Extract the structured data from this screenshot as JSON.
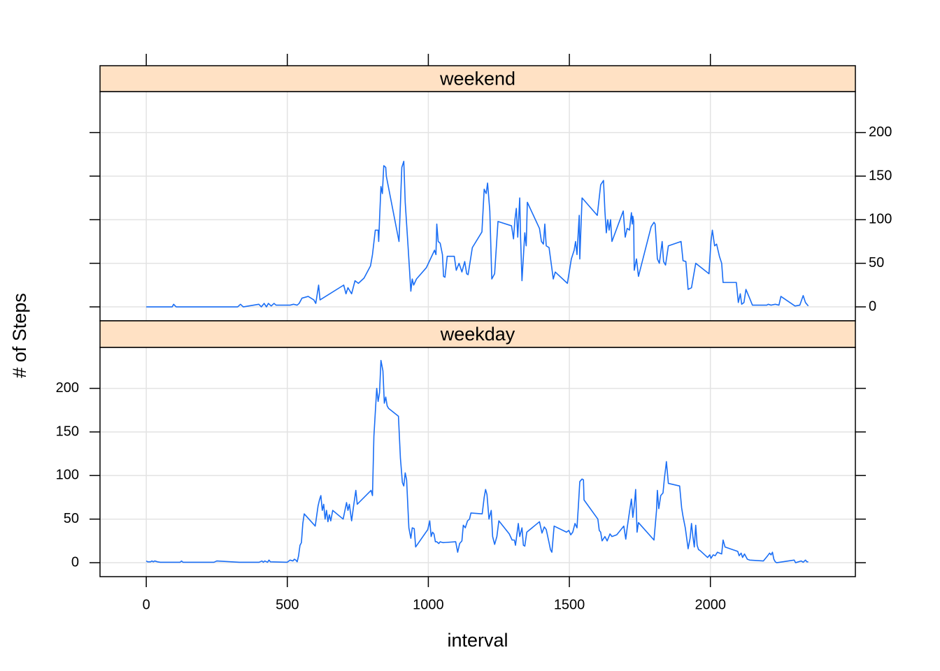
{
  "chart_data": [
    {
      "type": "line",
      "title": "weekend",
      "color": "#1a6ef5",
      "grid": true,
      "xlim": [
        -164,
        2514
      ],
      "ylim": [
        -16,
        247
      ],
      "xticks": [
        0,
        500,
        1000,
        1500,
        2000
      ],
      "yticks": [
        0,
        50,
        100,
        150,
        200
      ],
      "x": [
        0,
        92,
        97,
        106,
        324,
        334,
        344,
        399,
        408,
        418,
        426,
        433,
        443,
        453,
        460,
        510,
        522,
        535,
        542,
        552,
        574,
        594,
        601,
        611,
        616,
        700,
        708,
        715,
        728,
        740,
        752,
        772,
        795,
        802,
        812,
        822,
        824,
        827,
        832,
        837,
        842,
        849,
        851,
        896,
        906,
        913,
        918,
        928,
        938,
        943,
        948,
        958,
        993,
        1022,
        1027,
        1030,
        1035,
        1042,
        1050,
        1054,
        1059,
        1067,
        1092,
        1099,
        1109,
        1119,
        1129,
        1136,
        1141,
        1156,
        1190,
        1198,
        1205,
        1210,
        1218,
        1225,
        1235,
        1247,
        1295,
        1302,
        1307,
        1312,
        1317,
        1324,
        1327,
        1332,
        1342,
        1347,
        1351,
        1394,
        1401,
        1408,
        1413,
        1418,
        1428,
        1443,
        1450,
        1493,
        1507,
        1517,
        1522,
        1527,
        1535,
        1537,
        1545,
        1599,
        1611,
        1621,
        1626,
        1631,
        1636,
        1641,
        1646,
        1651,
        1691,
        1698,
        1705,
        1713,
        1720,
        1723,
        1725,
        1728,
        1730,
        1738,
        1745,
        1790,
        1800,
        1804,
        1812,
        1819,
        1829,
        1834,
        1841,
        1851,
        1896,
        1903,
        1913,
        1921,
        1933,
        1948,
        1995,
        2002,
        2007,
        2015,
        2022,
        2032,
        2040,
        2045,
        2092,
        2099,
        2106,
        2111,
        2119,
        2126,
        2139,
        2149,
        2200,
        2205,
        2215,
        2230,
        2243,
        2250,
        2300,
        2317,
        2329,
        2337,
        2347
      ],
      "values": [
        0,
        0,
        3,
        0,
        0,
        3,
        0,
        3,
        0,
        4,
        0,
        4,
        1,
        4,
        2,
        2,
        3,
        2,
        4,
        10,
        12,
        8,
        4,
        25,
        8,
        25,
        15,
        22,
        15,
        30,
        27,
        33,
        47,
        60,
        88,
        88,
        75,
        100,
        138,
        130,
        162,
        160,
        150,
        75,
        160,
        167,
        120,
        70,
        18,
        32,
        25,
        32,
        45,
        65,
        60,
        95,
        75,
        73,
        60,
        35,
        34,
        58,
        58,
        42,
        50,
        40,
        52,
        38,
        37,
        68,
        86,
        135,
        130,
        142,
        110,
        32,
        38,
        98,
        93,
        78,
        100,
        113,
        80,
        125,
        80,
        30,
        85,
        70,
        120,
        90,
        75,
        72,
        95,
        70,
        68,
        32,
        40,
        27,
        55,
        65,
        75,
        60,
        105,
        55,
        125,
        105,
        140,
        145,
        110,
        85,
        100,
        88,
        100,
        75,
        110,
        80,
        90,
        88,
        108,
        95,
        104,
        98,
        42,
        55,
        35,
        92,
        97,
        95,
        55,
        50,
        75,
        52,
        48,
        70,
        75,
        53,
        52,
        20,
        22,
        50,
        38,
        75,
        88,
        70,
        72,
        58,
        50,
        28,
        28,
        5,
        15,
        3,
        5,
        20,
        10,
        2,
        2,
        3,
        2,
        3,
        2,
        12,
        1,
        2,
        13,
        5,
        1
      ]
    },
    {
      "type": "line",
      "title": "weekday",
      "x_label": "interval",
      "y_label": "# of Steps",
      "color": "#1a6ef5",
      "grid": true,
      "xlim": [
        -164,
        2514
      ],
      "ylim": [
        -16,
        247
      ],
      "xticks": [
        0,
        500,
        1000,
        1500,
        2000
      ],
      "yticks": [
        0,
        50,
        100,
        150,
        200
      ],
      "x": [
        0,
        5,
        15,
        20,
        25,
        30,
        40,
        50,
        120,
        125,
        130,
        240,
        250,
        330,
        400,
        410,
        415,
        420,
        430,
        435,
        440,
        500,
        510,
        520,
        525,
        530,
        535,
        540,
        545,
        550,
        555,
        560,
        599,
        609,
        614,
        619,
        624,
        629,
        634,
        639,
        644,
        649,
        654,
        661,
        698,
        710,
        715,
        720,
        728,
        735,
        743,
        748,
        757,
        797,
        802,
        807,
        817,
        822,
        827,
        832,
        839,
        844,
        849,
        854,
        859,
        894,
        901,
        908,
        913,
        918,
        923,
        931,
        938,
        943,
        950,
        955,
        998,
        1005,
        1010,
        1015,
        1020,
        1025,
        1030,
        1037,
        1042,
        1052,
        1097,
        1104,
        1111,
        1119,
        1124,
        1131,
        1139,
        1146,
        1151,
        1191,
        1198,
        1203,
        1208,
        1215,
        1223,
        1228,
        1235,
        1243,
        1250,
        1287,
        1297,
        1305,
        1309,
        1319,
        1324,
        1332,
        1337,
        1342,
        1349,
        1394,
        1403,
        1411,
        1418,
        1428,
        1433,
        1438,
        1446,
        1490,
        1498,
        1505,
        1512,
        1520,
        1527,
        1532,
        1537,
        1545,
        1550,
        1552,
        1601,
        1606,
        1611,
        1616,
        1626,
        1634,
        1644,
        1651,
        1668,
        1693,
        1700,
        1705,
        1713,
        1720,
        1725,
        1730,
        1735,
        1740,
        1745,
        1800,
        1809,
        1812,
        1817,
        1824,
        1832,
        1837,
        1842,
        1844,
        1851,
        1891,
        1898,
        1903,
        1911,
        1921,
        1928,
        1933,
        1938,
        1943,
        1948,
        1953,
        1958,
        1963,
        1990,
        1998,
        2002,
        2010,
        2017,
        2025,
        2040,
        2045,
        2052,
        2097,
        2102,
        2109,
        2114,
        2121,
        2131,
        2139,
        2188,
        2203,
        2210,
        2215,
        2220,
        2225,
        2230,
        2235,
        2297,
        2302,
        2312,
        2322,
        2329,
        2337,
        2342,
        2347
      ],
      "values": [
        2,
        1,
        1,
        2,
        1,
        2,
        1,
        0.5,
        0.5,
        2,
        0.5,
        0.5,
        2,
        0.5,
        0.5,
        2,
        0.5,
        2,
        0.5,
        3,
        1,
        0.5,
        3,
        2,
        4,
        3,
        1,
        8,
        20,
        23,
        45,
        56,
        42,
        65,
        72,
        77,
        60,
        67,
        50,
        60,
        47,
        55,
        48,
        60,
        50,
        69,
        60,
        67,
        48,
        65,
        83,
        67,
        70,
        83,
        77,
        145,
        200,
        185,
        195,
        232,
        220,
        183,
        190,
        180,
        177,
        168,
        120,
        92,
        88,
        103,
        95,
        40,
        28,
        40,
        39,
        18,
        38,
        48,
        30,
        35,
        33,
        24,
        24,
        22,
        24,
        23,
        24,
        12,
        22,
        25,
        43,
        40,
        48,
        50,
        57,
        56,
        75,
        84,
        78,
        50,
        60,
        30,
        21,
        30,
        48,
        33,
        26,
        26,
        20,
        45,
        30,
        40,
        20,
        19,
        35,
        47,
        34,
        41,
        38,
        23,
        15,
        12,
        42,
        35,
        37,
        32,
        35,
        45,
        40,
        65,
        93,
        96,
        95,
        72,
        50,
        37,
        35,
        25,
        30,
        25,
        33,
        30,
        32,
        42,
        27,
        40,
        58,
        73,
        52,
        65,
        84,
        35,
        46,
        26,
        60,
        83,
        62,
        77,
        80,
        97,
        110,
        116,
        91,
        88,
        63,
        53,
        40,
        16,
        28,
        45,
        30,
        18,
        43,
        20,
        15,
        14,
        6,
        9,
        5,
        9,
        8,
        12,
        10,
        26,
        18,
        13,
        8,
        11,
        6,
        10,
        4,
        3,
        2,
        8,
        11,
        9,
        12,
        4,
        1,
        0,
        3,
        0,
        1,
        2,
        0.5,
        3,
        1,
        1
      ]
    }
  ]
}
